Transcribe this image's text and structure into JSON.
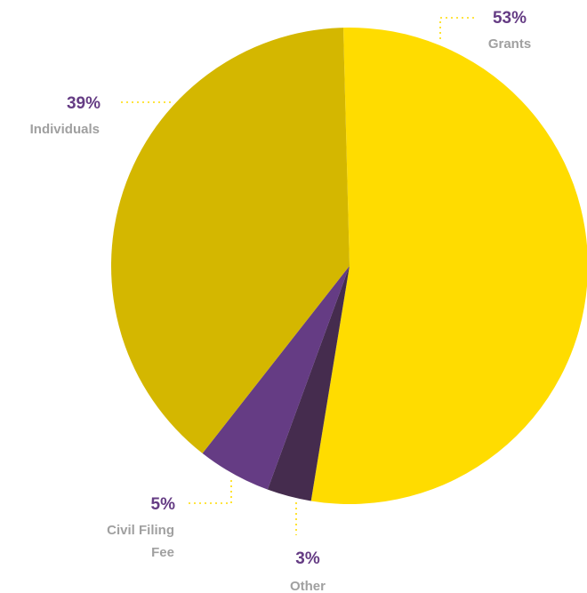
{
  "chart_data": {
    "type": "pie",
    "title": "",
    "slices": [
      {
        "label": "Grants",
        "value": 53,
        "percent_label": "53%",
        "color": "#FFDC00"
      },
      {
        "label": "Other",
        "value": 3,
        "percent_label": "3%",
        "color": "#452C4E"
      },
      {
        "label": "Civil Filing Fee",
        "label_lines": [
          "Civil Filing",
          "Fee"
        ],
        "value": 5,
        "percent_label": "5%",
        "color": "#653C84"
      },
      {
        "label": "Individuals",
        "value": 39,
        "percent_label": "39%",
        "color": "#D4B700"
      }
    ],
    "percent_color": "#653C84",
    "label_color": "#A0A0A0",
    "leader_color": "#FFDC00",
    "legend": "none"
  }
}
